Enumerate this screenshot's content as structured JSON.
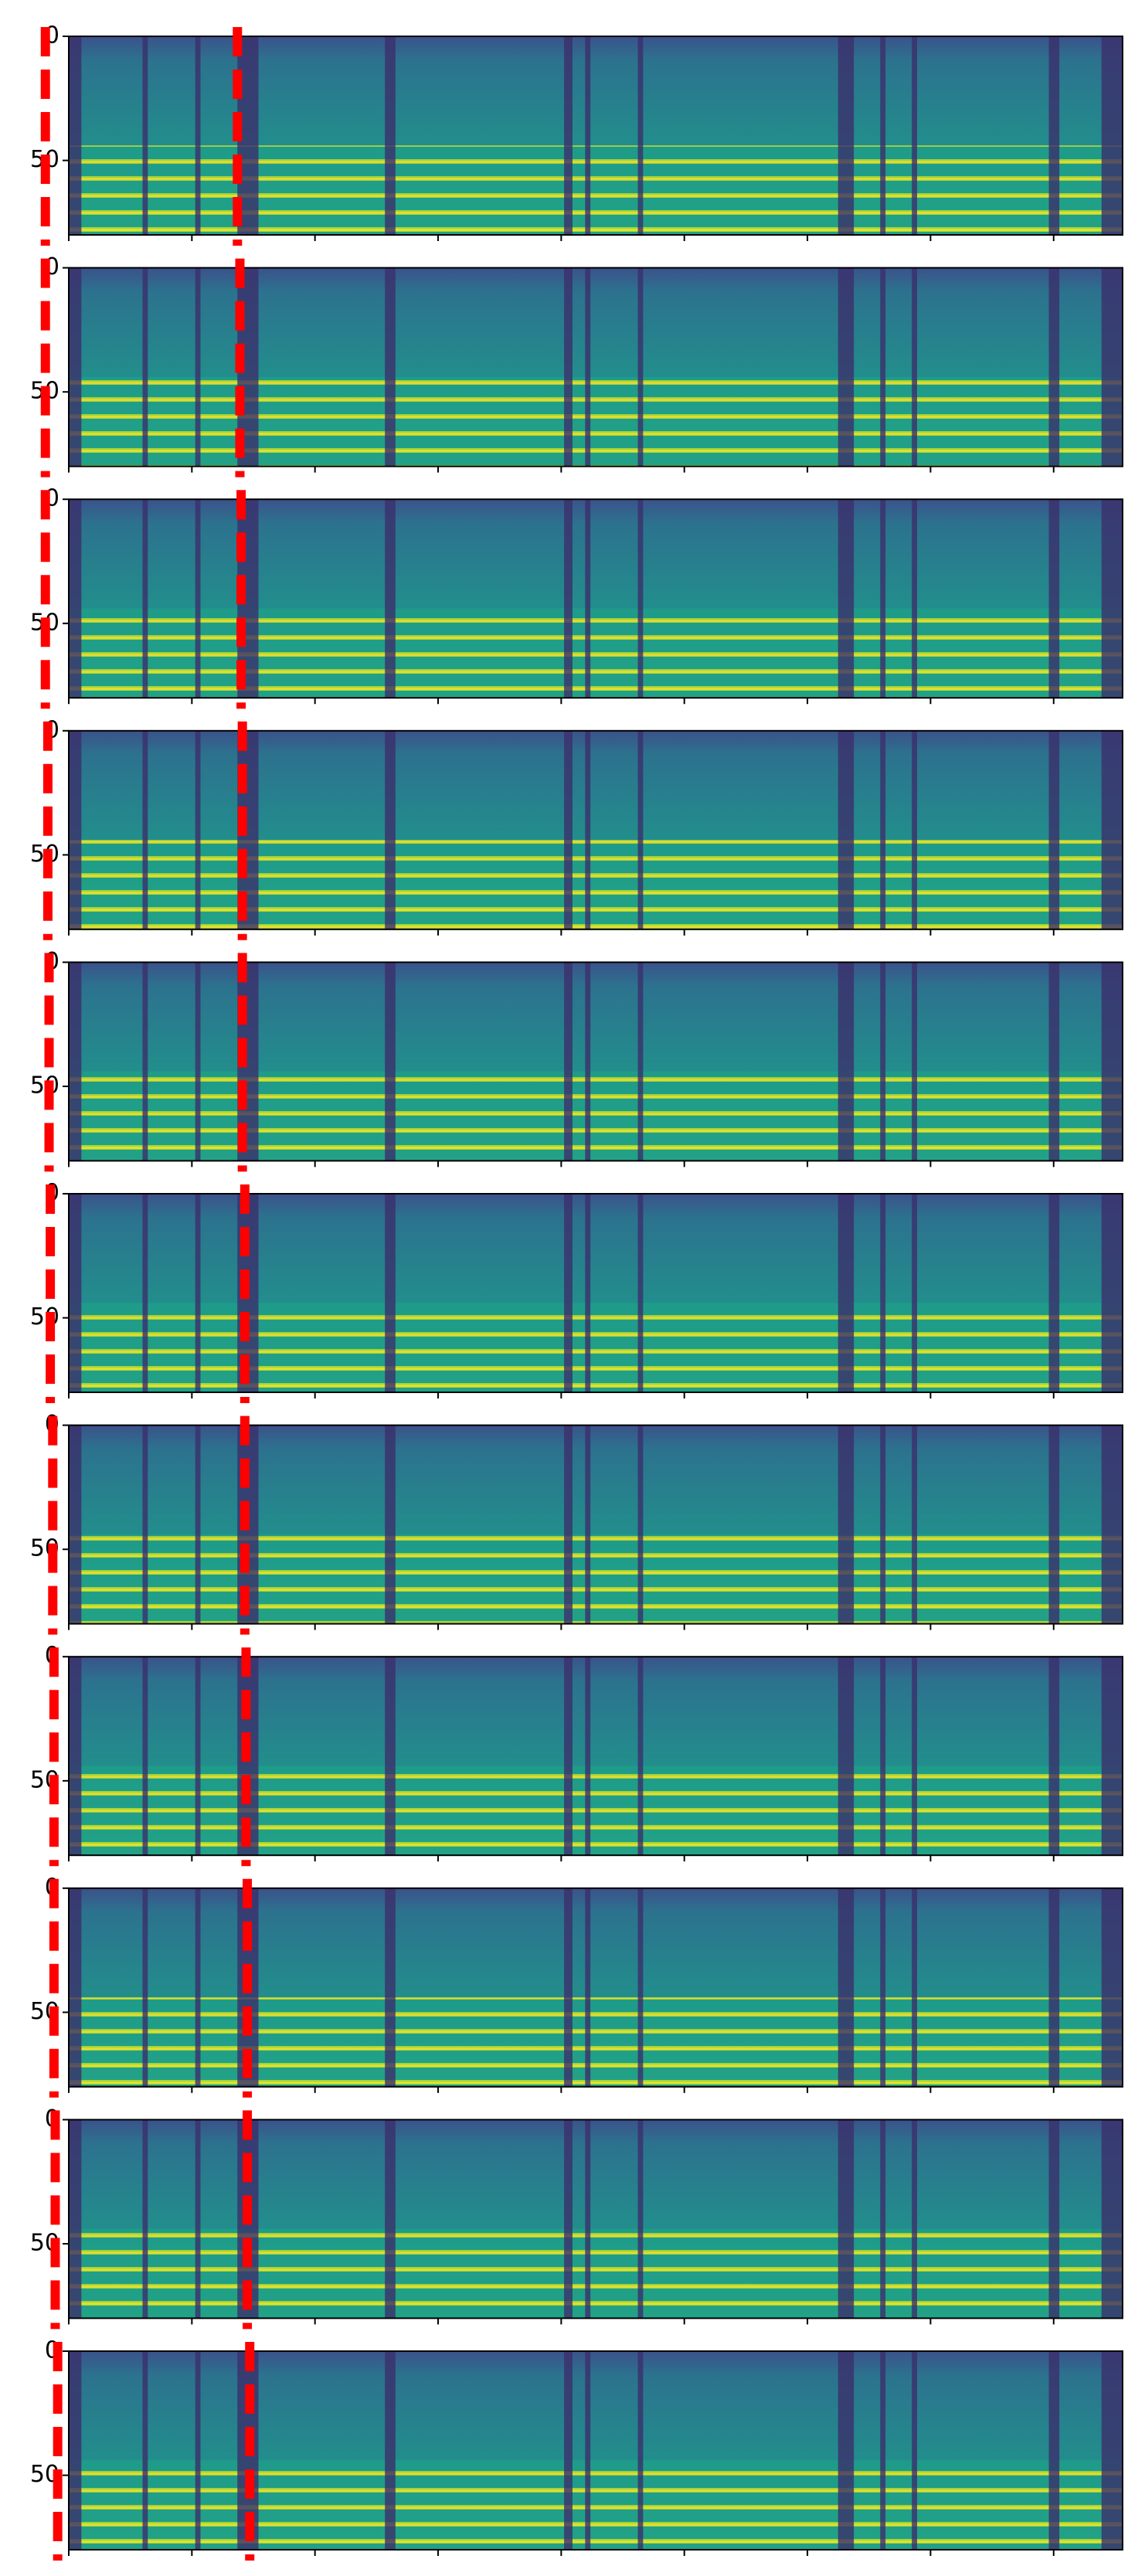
{
  "chart_data": [
    {
      "type": "spectrogram",
      "ylim": [
        80,
        0
      ],
      "yticks": [
        0,
        50
      ],
      "xlim": [
        0,
        856
      ],
      "xticks": [
        0,
        100,
        200,
        300,
        400,
        500,
        600,
        700,
        800
      ],
      "boundaries": [
        -19,
        137
      ],
      "boundary_color": "#ff0000"
    },
    {
      "type": "spectrogram",
      "ylim": [
        80,
        0
      ],
      "yticks": [
        0,
        50
      ],
      "xlim": [
        0,
        856
      ],
      "xticks": [
        0,
        100,
        200,
        300,
        400,
        500,
        600,
        700,
        800
      ],
      "boundaries": [
        -19,
        139
      ],
      "boundary_color": "#ff0000"
    },
    {
      "type": "spectrogram",
      "ylim": [
        80,
        0
      ],
      "yticks": [
        0,
        50
      ],
      "xlim": [
        0,
        856
      ],
      "xticks": [
        0,
        100,
        200,
        300,
        400,
        500,
        600,
        700,
        800
      ],
      "boundaries": [
        -19,
        140
      ],
      "boundary_color": "#ff0000"
    },
    {
      "type": "spectrogram",
      "ylim": [
        80,
        0
      ],
      "yticks": [
        0,
        50
      ],
      "xlim": [
        0,
        856
      ],
      "xticks": [
        0,
        100,
        200,
        300,
        400,
        500,
        600,
        700,
        800
      ],
      "boundaries": [
        -17,
        141
      ],
      "boundary_color": "#ff0000"
    },
    {
      "type": "spectrogram",
      "ylim": [
        80,
        0
      ],
      "yticks": [
        0,
        50
      ],
      "xlim": [
        0,
        856
      ],
      "xticks": [
        0,
        100,
        200,
        300,
        400,
        500,
        600,
        700,
        800
      ],
      "boundaries": [
        -16,
        141
      ],
      "boundary_color": "#ff0000"
    },
    {
      "type": "spectrogram",
      "ylim": [
        80,
        0
      ],
      "yticks": [
        0,
        50
      ],
      "xlim": [
        0,
        856
      ],
      "xticks": [
        0,
        100,
        200,
        300,
        400,
        500,
        600,
        700,
        800
      ],
      "boundaries": [
        -15,
        143
      ],
      "boundary_color": "#ff0000"
    },
    {
      "type": "spectrogram",
      "ylim": [
        80,
        0
      ],
      "yticks": [
        0,
        50
      ],
      "xlim": [
        0,
        856
      ],
      "xticks": [
        0,
        100,
        200,
        300,
        400,
        500,
        600,
        700,
        800
      ],
      "boundaries": [
        -13,
        143
      ],
      "boundary_color": "#ff0000"
    },
    {
      "type": "spectrogram",
      "ylim": [
        80,
        0
      ],
      "yticks": [
        0,
        50
      ],
      "xlim": [
        0,
        856
      ],
      "xticks": [
        0,
        100,
        200,
        300,
        400,
        500,
        600,
        700,
        800
      ],
      "boundaries": [
        -12,
        144
      ],
      "boundary_color": "#ff0000"
    },
    {
      "type": "spectrogram",
      "ylim": [
        80,
        0
      ],
      "yticks": [
        0,
        50
      ],
      "xlim": [
        0,
        856
      ],
      "xticks": [
        0,
        100,
        200,
        300,
        400,
        500,
        600,
        700,
        800
      ],
      "boundaries": [
        -12,
        145
      ],
      "boundary_color": "#ff0000"
    },
    {
      "type": "spectrogram",
      "ylim": [
        80,
        0
      ],
      "yticks": [
        0,
        50
      ],
      "xlim": [
        0,
        856
      ],
      "xticks": [
        0,
        100,
        200,
        300,
        400,
        500,
        600,
        700,
        800
      ],
      "boundaries": [
        -11,
        145
      ],
      "boundary_color": "#ff0000"
    },
    {
      "type": "spectrogram",
      "ylim": [
        80,
        0
      ],
      "yticks": [
        0,
        50
      ],
      "xlim": [
        0,
        856
      ],
      "xticks": [
        0,
        100,
        200,
        300,
        400,
        500,
        600,
        700,
        800
      ],
      "boundaries": [
        -9,
        147
      ],
      "boundary_color": "#ff0000"
    }
  ]
}
